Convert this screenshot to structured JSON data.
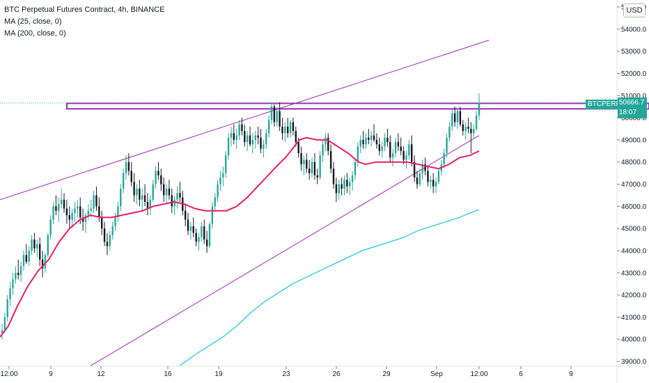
{
  "legend": {
    "title": "BTC Perpetual Futures Contract, 4h, BINANCE",
    "ma25": "MA (25, close, 0)",
    "ma200": "MA (200, close, 0)"
  },
  "currency_button": "USD",
  "last_price": {
    "symbol": "BTCPERP",
    "price": "50666.7",
    "countdown": "18:07"
  },
  "colors": {
    "up": "#26a69a",
    "down": "#131722",
    "ma25": "#e91e63",
    "ma200": "#26c6da",
    "drawing": "#9c27b0"
  },
  "chart_data": {
    "type": "candlestick",
    "timeframe": "4h",
    "y_ticks": [
      39000,
      40000,
      41000,
      42000,
      43000,
      44000,
      45000,
      46000,
      47000,
      48000,
      49000,
      50000,
      51000,
      52000,
      53000,
      54000,
      55000
    ],
    "y_tick_labels": [
      "39000.0",
      "40000.0",
      "41000.0",
      "42000.0",
      "43000.0",
      "44000.0",
      "45000.0",
      "46000.0",
      "47000.0",
      "48000.0",
      "49000.0",
      "50000.0",
      "51000.0",
      "52000.0",
      "53000.0",
      "54000.0",
      "55000.0"
    ],
    "ylim": [
      38800,
      55400
    ],
    "x_ticks": [
      "12:00",
      "9",
      "12",
      "16",
      "19",
      "23",
      "26",
      "29",
      "Sep",
      "12:00",
      "6",
      "9"
    ],
    "series": [
      {
        "name": "MA (25, close, 0)",
        "type": "line"
      },
      {
        "name": "MA (200, close, 0)",
        "type": "line"
      }
    ],
    "ma25_points": [
      [
        0,
        40100
      ],
      [
        12,
        40600
      ],
      [
        25,
        41500
      ],
      [
        40,
        42400
      ],
      [
        55,
        43100
      ],
      [
        70,
        43600
      ],
      [
        85,
        44400
      ],
      [
        100,
        45000
      ],
      [
        115,
        45400
      ],
      [
        130,
        45600
      ],
      [
        145,
        45500
      ],
      [
        160,
        45500
      ],
      [
        175,
        45600
      ],
      [
        190,
        45700
      ],
      [
        205,
        45800
      ],
      [
        220,
        46000
      ],
      [
        235,
        46100
      ],
      [
        250,
        46200
      ],
      [
        265,
        46100
      ],
      [
        280,
        45900
      ],
      [
        295,
        45800
      ],
      [
        310,
        45800
      ],
      [
        325,
        45800
      ],
      [
        340,
        46000
      ],
      [
        355,
        46400
      ],
      [
        370,
        46900
      ],
      [
        385,
        47400
      ],
      [
        400,
        47900
      ],
      [
        410,
        48200
      ],
      [
        420,
        48600
      ],
      [
        430,
        49000
      ],
      [
        440,
        49100
      ],
      [
        455,
        49000
      ],
      [
        470,
        49000
      ],
      [
        485,
        48700
      ],
      [
        500,
        48400
      ],
      [
        515,
        48000
      ],
      [
        525,
        47900
      ],
      [
        540,
        48000
      ],
      [
        555,
        48000
      ],
      [
        570,
        48000
      ],
      [
        585,
        48000
      ],
      [
        600,
        47900
      ],
      [
        615,
        47800
      ],
      [
        630,
        47700
      ],
      [
        645,
        47900
      ],
      [
        660,
        48200
      ],
      [
        675,
        48300
      ],
      [
        688,
        48500
      ]
    ],
    "ma200_points": [
      [
        258,
        38800
      ],
      [
        280,
        39300
      ],
      [
        300,
        39700
      ],
      [
        320,
        40100
      ],
      [
        340,
        40600
      ],
      [
        360,
        41200
      ],
      [
        380,
        41700
      ],
      [
        400,
        42100
      ],
      [
        420,
        42500
      ],
      [
        440,
        42800
      ],
      [
        460,
        43100
      ],
      [
        480,
        43400
      ],
      [
        500,
        43700
      ],
      [
        520,
        44000
      ],
      [
        540,
        44200
      ],
      [
        560,
        44400
      ],
      [
        580,
        44600
      ],
      [
        600,
        44900
      ],
      [
        620,
        45100
      ],
      [
        640,
        45300
      ],
      [
        660,
        45500
      ],
      [
        675,
        45700
      ],
      [
        688,
        45850
      ]
    ],
    "upper_channel": {
      "x0": 0,
      "p0": 46300,
      "x1": 702,
      "p1": 53500
    },
    "lower_channel": {
      "x0": 130,
      "p0": 38800,
      "x1": 688,
      "p1": 49200
    },
    "resistance_zone": {
      "top": 50650,
      "bottom": 50400,
      "x_start": 96,
      "x_end": 932
    },
    "candles": [
      [
        40300,
        40700,
        40000,
        40400
      ],
      [
        40400,
        41200,
        40300,
        41000
      ],
      [
        41000,
        42000,
        40800,
        41800
      ],
      [
        41800,
        42600,
        41500,
        42300
      ],
      [
        42300,
        43000,
        42000,
        42700
      ],
      [
        42700,
        43300,
        42500,
        43000
      ],
      [
        43000,
        43600,
        42700,
        42900
      ],
      [
        42900,
        43500,
        42600,
        43300
      ],
      [
        43300,
        44000,
        43100,
        43800
      ],
      [
        43800,
        44300,
        43400,
        43500
      ],
      [
        43500,
        44200,
        43300,
        44000
      ],
      [
        44000,
        44700,
        43800,
        44500
      ],
      [
        44500,
        44800,
        43900,
        44100
      ],
      [
        44100,
        44500,
        43700,
        44300
      ],
      [
        44300,
        44600,
        43300,
        43600
      ],
      [
        43600,
        44000,
        42800,
        43200
      ],
      [
        43200,
        43900,
        43000,
        43800
      ],
      [
        43800,
        44800,
        43700,
        44700
      ],
      [
        44700,
        45600,
        44500,
        45400
      ],
      [
        45400,
        46200,
        45200,
        46000
      ],
      [
        46000,
        46500,
        45600,
        45800
      ],
      [
        45800,
        46400,
        45300,
        46100
      ],
      [
        46100,
        46800,
        45900,
        46300
      ],
      [
        46300,
        46600,
        45700,
        45900
      ],
      [
        45900,
        46300,
        45200,
        45600
      ],
      [
        45600,
        46000,
        45000,
        45400
      ],
      [
        45400,
        45900,
        45000,
        45700
      ],
      [
        45700,
        46200,
        45300,
        45900
      ],
      [
        45900,
        46300,
        45500,
        46000
      ],
      [
        46000,
        46400,
        45200,
        45500
      ],
      [
        45500,
        45900,
        44900,
        45300
      ],
      [
        45300,
        45700,
        44800,
        45600
      ],
      [
        45600,
        46100,
        45400,
        45800
      ],
      [
        45800,
        46300,
        45500,
        45900
      ],
      [
        45900,
        46700,
        45700,
        46500
      ],
      [
        46500,
        46900,
        45800,
        46000
      ],
      [
        46000,
        46400,
        45300,
        45500
      ],
      [
        45500,
        45800,
        44700,
        45000
      ],
      [
        45000,
        45300,
        44200,
        44400
      ],
      [
        44400,
        44800,
        43800,
        44200
      ],
      [
        44200,
        44900,
        44000,
        44700
      ],
      [
        44700,
        45300,
        44500,
        45100
      ],
      [
        45100,
        45700,
        44900,
        45500
      ],
      [
        45500,
        46200,
        45300,
        46000
      ],
      [
        46000,
        47000,
        45800,
        46800
      ],
      [
        46800,
        47700,
        46600,
        47500
      ],
      [
        47500,
        48300,
        47200,
        48000
      ],
      [
        48000,
        48400,
        47400,
        47600
      ],
      [
        47600,
        48000,
        46900,
        47100
      ],
      [
        47100,
        47500,
        46200,
        46500
      ],
      [
        46500,
        47000,
        46100,
        46800
      ],
      [
        46800,
        47200,
        46000,
        46300
      ],
      [
        46300,
        46800,
        45800,
        46500
      ],
      [
        46500,
        47000,
        46000,
        46200
      ],
      [
        46200,
        46600,
        45600,
        45900
      ],
      [
        45900,
        46500,
        45600,
        46300
      ],
      [
        46300,
        47200,
        46200,
        47000
      ],
      [
        47000,
        47800,
        46800,
        47600
      ],
      [
        47600,
        48000,
        47200,
        47400
      ],
      [
        47400,
        47700,
        46700,
        47000
      ],
      [
        47000,
        47300,
        46200,
        46500
      ],
      [
        46500,
        47000,
        46100,
        46800
      ],
      [
        46800,
        47200,
        46300,
        46500
      ],
      [
        46500,
        46800,
        45700,
        46000
      ],
      [
        46000,
        46500,
        45600,
        46300
      ],
      [
        46300,
        46900,
        45900,
        46600
      ],
      [
        46600,
        47100,
        46200,
        46400
      ],
      [
        46400,
        46700,
        45600,
        45800
      ],
      [
        45800,
        46100,
        45100,
        45400
      ],
      [
        45400,
        45700,
        44700,
        44900
      ],
      [
        44900,
        45300,
        44500,
        45100
      ],
      [
        45100,
        45500,
        44600,
        44800
      ],
      [
        44800,
        45000,
        44200,
        44400
      ],
      [
        44400,
        44800,
        44000,
        44600
      ],
      [
        44600,
        45300,
        44400,
        45100
      ],
      [
        45100,
        45400,
        44300,
        44500
      ],
      [
        44500,
        44900,
        43900,
        44200
      ],
      [
        44200,
        45300,
        44100,
        45200
      ],
      [
        45200,
        46200,
        45000,
        46000
      ],
      [
        46000,
        46600,
        45800,
        46400
      ],
      [
        46400,
        47200,
        46200,
        47000
      ],
      [
        47000,
        47600,
        46700,
        47300
      ],
      [
        47300,
        47800,
        46900,
        47500
      ],
      [
        47500,
        48500,
        47300,
        48300
      ],
      [
        48300,
        49300,
        48100,
        49100
      ],
      [
        49100,
        49600,
        48700,
        49300
      ],
      [
        49300,
        49700,
        48800,
        49000
      ],
      [
        49000,
        49500,
        48600,
        49200
      ],
      [
        49200,
        49900,
        49000,
        49700
      ],
      [
        49700,
        50000,
        49200,
        49400
      ],
      [
        49400,
        49700,
        48700,
        48900
      ],
      [
        48900,
        49400,
        48500,
        49200
      ],
      [
        49200,
        49600,
        48700,
        48800
      ],
      [
        48800,
        49300,
        48400,
        49000
      ],
      [
        49000,
        49400,
        48600,
        49200
      ],
      [
        49200,
        49600,
        48800,
        49100
      ],
      [
        49100,
        49500,
        48400,
        48600
      ],
      [
        48600,
        49000,
        48200,
        48800
      ],
      [
        48800,
        49500,
        48600,
        49300
      ],
      [
        49300,
        50100,
        49100,
        49900
      ],
      [
        49900,
        50700,
        49700,
        50500
      ],
      [
        50500,
        50600,
        49600,
        49800
      ],
      [
        49800,
        50500,
        49600,
        50300
      ],
      [
        50300,
        50700,
        49400,
        49600
      ],
      [
        49600,
        50000,
        49000,
        49300
      ],
      [
        49300,
        49800,
        48900,
        49600
      ],
      [
        49600,
        50000,
        49100,
        49300
      ],
      [
        49300,
        49900,
        49100,
        49800
      ],
      [
        49800,
        50000,
        49200,
        49400
      ],
      [
        49400,
        49600,
        48700,
        48900
      ],
      [
        48900,
        49100,
        48200,
        48400
      ],
      [
        48400,
        48700,
        47600,
        47900
      ],
      [
        47900,
        48300,
        47400,
        48100
      ],
      [
        48100,
        48400,
        47500,
        47700
      ],
      [
        47700,
        48100,
        47200,
        47500
      ],
      [
        47500,
        48200,
        47300,
        48000
      ],
      [
        48000,
        48400,
        47200,
        47400
      ],
      [
        47400,
        47700,
        47000,
        47300
      ],
      [
        47300,
        48500,
        47200,
        48300
      ],
      [
        48300,
        49000,
        48000,
        48800
      ],
      [
        48800,
        49300,
        48500,
        49100
      ],
      [
        49100,
        49300,
        48300,
        48500
      ],
      [
        48500,
        48800,
        47500,
        47700
      ],
      [
        47700,
        48000,
        46800,
        47000
      ],
      [
        47000,
        47300,
        46200,
        46600
      ],
      [
        46600,
        47200,
        46300,
        47000
      ],
      [
        47000,
        47300,
        46500,
        46800
      ],
      [
        46800,
        47400,
        46500,
        47200
      ],
      [
        47200,
        47500,
        46600,
        46900
      ],
      [
        46900,
        47300,
        46500,
        47100
      ],
      [
        47100,
        47600,
        46700,
        47400
      ],
      [
        47400,
        48200,
        47200,
        48000
      ],
      [
        48000,
        48900,
        47800,
        48700
      ],
      [
        48700,
        49200,
        48400,
        49000
      ],
      [
        49000,
        49400,
        48600,
        48800
      ],
      [
        48800,
        49300,
        48600,
        49100
      ],
      [
        49100,
        49500,
        48800,
        49000
      ],
      [
        49000,
        49400,
        48700,
        49200
      ],
      [
        49200,
        49700,
        48900,
        49000
      ],
      [
        49000,
        49300,
        48600,
        48800
      ],
      [
        48800,
        49100,
        48300,
        48500
      ],
      [
        48500,
        48900,
        48200,
        48700
      ],
      [
        48700,
        49300,
        48500,
        49100
      ],
      [
        49100,
        49500,
        48700,
        48900
      ],
      [
        48900,
        49200,
        48000,
        48200
      ],
      [
        48200,
        48600,
        47800,
        48400
      ],
      [
        48400,
        49100,
        48200,
        48900
      ],
      [
        48900,
        49300,
        48500,
        48700
      ],
      [
        48700,
        49100,
        48300,
        48500
      ],
      [
        48500,
        48700,
        47900,
        48100
      ],
      [
        48100,
        48500,
        47700,
        48300
      ],
      [
        48300,
        49000,
        48100,
        48800
      ],
      [
        48800,
        49200,
        47800,
        48000
      ],
      [
        48000,
        48300,
        47100,
        47300
      ],
      [
        47300,
        47600,
        46800,
        47000
      ],
      [
        47000,
        47700,
        46900,
        47500
      ],
      [
        47500,
        48100,
        47200,
        47900
      ],
      [
        47900,
        48200,
        47400,
        47600
      ],
      [
        47600,
        47800,
        46900,
        47100
      ],
      [
        47100,
        47400,
        46800,
        47200
      ],
      [
        47200,
        47500,
        46600,
        46900
      ],
      [
        46900,
        47300,
        46600,
        47100
      ],
      [
        47100,
        47700,
        47000,
        47600
      ],
      [
        47600,
        48100,
        47400,
        47900
      ],
      [
        47900,
        48600,
        47700,
        48400
      ],
      [
        48400,
        49300,
        48200,
        49100
      ],
      [
        49100,
        49800,
        48900,
        49600
      ],
      [
        49600,
        50400,
        49400,
        50200
      ],
      [
        50200,
        50500,
        49600,
        49800
      ],
      [
        49800,
        50400,
        49500,
        50300
      ],
      [
        50300,
        50500,
        49600,
        49700
      ],
      [
        49700,
        49900,
        49200,
        49400
      ],
      [
        49400,
        49800,
        49000,
        49600
      ],
      [
        49600,
        50000,
        49300,
        49500
      ],
      [
        49500,
        49800,
        48400,
        49300
      ],
      [
        49300,
        49700,
        49100,
        49500
      ],
      [
        49500,
        50300,
        49400,
        50100
      ],
      [
        50100,
        51100,
        49900,
        50667
      ]
    ]
  }
}
